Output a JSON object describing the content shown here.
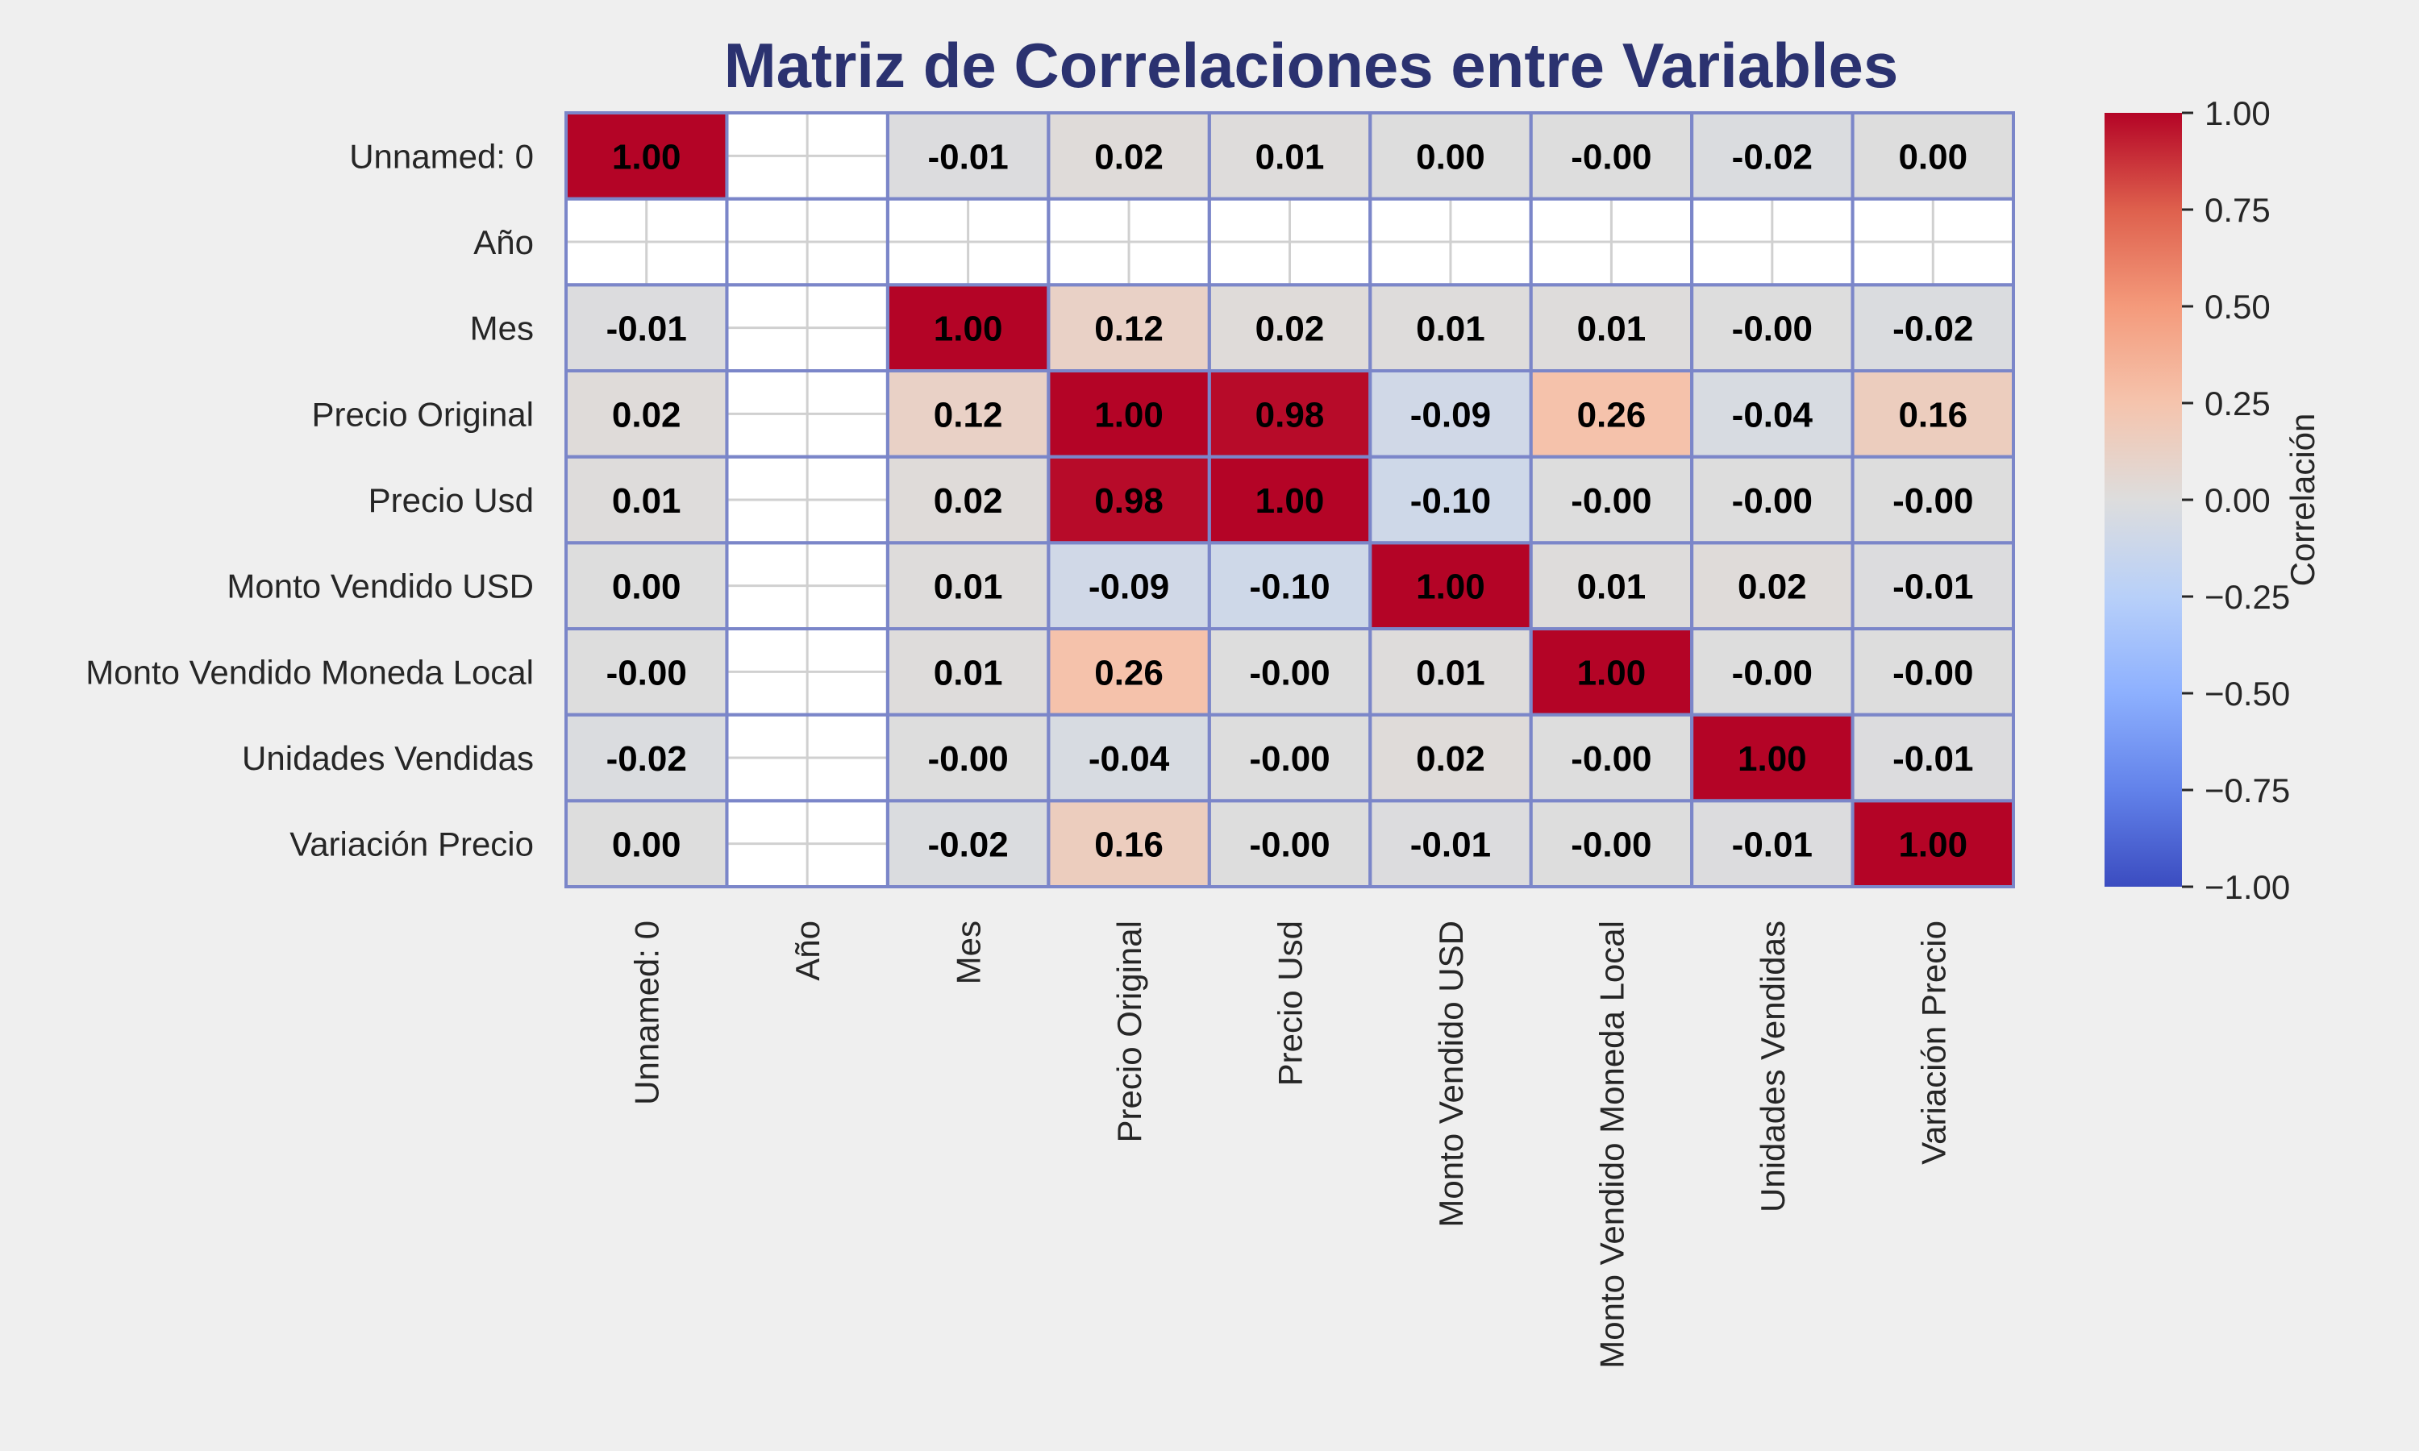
{
  "chart_data": {
    "type": "heatmap",
    "title": "Matriz de Correlaciones entre Variables",
    "variables": [
      "Unnamed: 0",
      "Año",
      "Mes",
      "Precio Original",
      "Precio Usd",
      "Monto Vendido USD",
      "Monto Vendido Moneda Local",
      "Unidades Vendidas",
      "Variación Precio"
    ],
    "values": [
      [
        1.0,
        null,
        -0.01,
        0.02,
        0.01,
        0.0,
        -0.0,
        -0.02,
        0.0
      ],
      [
        null,
        null,
        null,
        null,
        null,
        null,
        null,
        null,
        null
      ],
      [
        -0.01,
        null,
        1.0,
        0.12,
        0.02,
        0.01,
        0.01,
        -0.0,
        -0.02
      ],
      [
        0.02,
        null,
        0.12,
        1.0,
        0.98,
        -0.09,
        0.26,
        -0.04,
        0.16
      ],
      [
        0.01,
        null,
        0.02,
        0.98,
        1.0,
        -0.1,
        -0.0,
        -0.0,
        -0.0
      ],
      [
        0.0,
        null,
        0.01,
        -0.09,
        -0.1,
        1.0,
        0.01,
        0.02,
        -0.01
      ],
      [
        -0.0,
        null,
        0.01,
        0.26,
        -0.0,
        0.01,
        1.0,
        -0.0,
        -0.0
      ],
      [
        -0.02,
        null,
        -0.0,
        -0.04,
        -0.0,
        0.02,
        -0.0,
        1.0,
        -0.01
      ],
      [
        0.0,
        null,
        -0.02,
        0.16,
        -0.0,
        -0.01,
        -0.0,
        -0.01,
        1.0
      ]
    ],
    "value_format": "2 decimals",
    "colormap": "coolwarm",
    "vmin": -1.0,
    "vmax": 1.0,
    "colorbar": {
      "label": "Correlación",
      "ticks": [
        1.0,
        0.75,
        0.5,
        0.25,
        0.0,
        -0.25,
        -0.5,
        -0.75,
        -1.0
      ],
      "tick_labels": [
        "1.00",
        "0.75",
        "0.50",
        "0.25",
        "0.00",
        "−0.25",
        "−0.50",
        "−0.75",
        "−1.00"
      ]
    },
    "cell_border_color": "#7b86c9",
    "background_color": "#efefef",
    "title_color": "#2b3270",
    "legend_position": "right"
  }
}
